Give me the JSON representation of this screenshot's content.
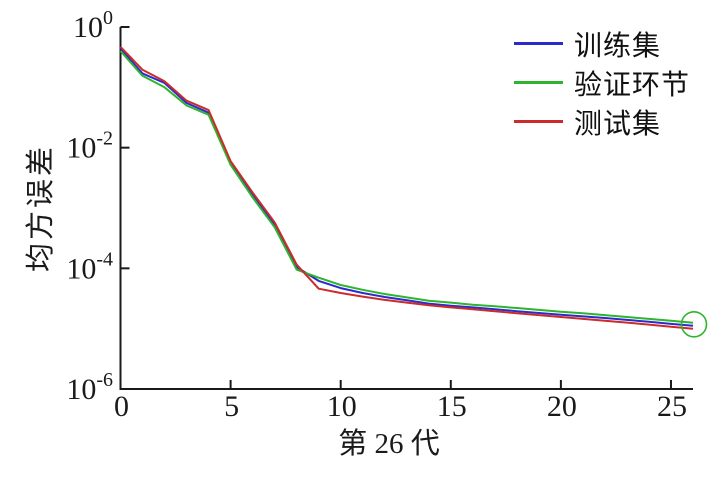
{
  "figure": {
    "background": "#ffffff",
    "axis_color": "#1a1a1a",
    "text_color": "#1a1a1a"
  },
  "chart_data": {
    "type": "line",
    "title": "",
    "xlabel": "第 26 代",
    "ylabel": "均方误差",
    "yscale": "log",
    "xlim": [
      0,
      26
    ],
    "ylim": [
      1e-06,
      1
    ],
    "xticks": [
      0,
      5,
      10,
      15,
      20,
      25
    ],
    "ytick_exponents": [
      0,
      -2,
      -4,
      -6
    ],
    "grid": false,
    "legend_position": "top-right",
    "x": [
      0,
      1,
      2,
      3,
      4,
      5,
      6,
      7,
      8,
      9,
      10,
      11,
      12,
      13,
      14,
      15,
      16,
      17,
      18,
      19,
      20,
      21,
      22,
      23,
      24,
      25,
      26
    ],
    "series": [
      {
        "name": "训练集",
        "color": "#2b2bcc",
        "values": [
          0.44,
          0.17,
          0.118,
          0.055,
          0.038,
          0.0056,
          0.0017,
          0.00052,
          0.000105,
          6.2e-05,
          4.7e-05,
          3.9e-05,
          3.35e-05,
          2.95e-05,
          2.6e-05,
          2.4e-05,
          2.25e-05,
          2.1e-05,
          1.95e-05,
          1.82e-05,
          1.7e-05,
          1.6e-05,
          1.5e-05,
          1.4e-05,
          1.3e-05,
          1.2e-05,
          1.12e-05
        ]
      },
      {
        "name": "验证环节",
        "color": "#2eb42e",
        "values": [
          0.4,
          0.155,
          0.1,
          0.05,
          0.035,
          0.0052,
          0.0015,
          0.00048,
          9.5e-05,
          7e-05,
          5.3e-05,
          4.4e-05,
          3.75e-05,
          3.3e-05,
          2.9e-05,
          2.7e-05,
          2.5e-05,
          2.35e-05,
          2.2e-05,
          2.05e-05,
          1.9e-05,
          1.8e-05,
          1.68e-05,
          1.56e-05,
          1.45e-05,
          1.35e-05,
          1.25e-05
        ]
      },
      {
        "name": "测试集",
        "color": "#cc2b2b",
        "values": [
          0.47,
          0.195,
          0.126,
          0.06,
          0.042,
          0.006,
          0.0018,
          0.00058,
          0.000115,
          4.6e-05,
          3.9e-05,
          3.4e-05,
          3e-05,
          2.7e-05,
          2.45e-05,
          2.25e-05,
          2.1e-05,
          1.95e-05,
          1.8e-05,
          1.68e-05,
          1.56e-05,
          1.45e-05,
          1.35e-05,
          1.26e-05,
          1.17e-05,
          1.08e-05,
          1e-05
        ]
      }
    ],
    "best_marker": {
      "series": "验证环节",
      "epoch": 26,
      "value": 1.25e-05,
      "color": "#2eb42e"
    }
  }
}
